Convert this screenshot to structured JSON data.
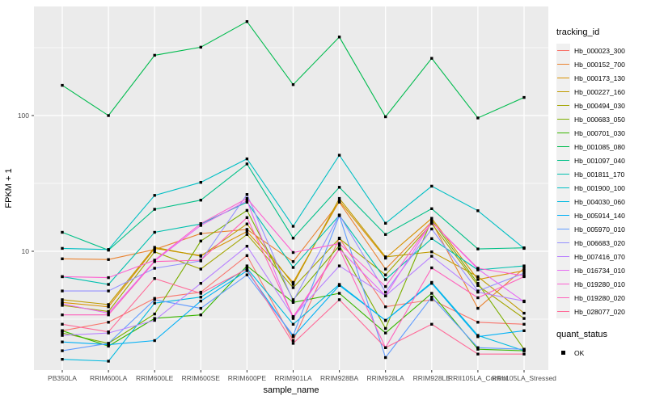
{
  "figure": {
    "panel_bg": "#EBEBEB",
    "grid_color": "#FFFFFF",
    "tick_text_color": "#4D4D4D",
    "axis_title_color": "#000000",
    "point_color": "#000000",
    "legend_key_bg": "#F0F0F0"
  },
  "legend": {
    "tracking_title": "tracking_id",
    "quant_title": "quant_status",
    "quant_items": [
      {
        "label": "OK"
      }
    ]
  },
  "chart_data": {
    "type": "line",
    "title": "",
    "xlabel": "sample_name",
    "ylabel": "FPKM + 1",
    "y_scale": "log10",
    "y_tick_labels": [
      "100",
      "10"
    ],
    "y_tick_values": [
      100,
      10
    ],
    "y_minor_values": [
      316.2,
      31.62,
      3.162
    ],
    "ylim_log10": [
      0.125,
      2.803
    ],
    "grid": true,
    "legend_position": "right",
    "point_marker": "filled-black-square",
    "categories": [
      "PB350LA",
      "RRIM600LA",
      "RRIM600LE",
      "RRIM600SE",
      "RRIM600PE",
      "RRIM901LA",
      "RRIM928BA",
      "RRIM928LA",
      "RRIM928LE",
      "RRII105LA_Control",
      "RRII105LA_Stressed"
    ],
    "series": [
      {
        "name": "Hb_000023_300",
        "color": "#F8766D",
        "values": [
          2.6,
          3.0,
          4.5,
          5.0,
          9.3,
          2.2,
          12.5,
          3.9,
          4.4,
          3.0,
          2.9
        ]
      },
      {
        "name": "Hb_000152_700",
        "color": "#EA8331",
        "values": [
          8.8,
          8.7,
          10.3,
          13.5,
          14.5,
          8.4,
          23.0,
          7.4,
          16.5,
          3.8,
          7.5
        ]
      },
      {
        "name": "Hb_000173_130",
        "color": "#D89000",
        "values": [
          4.2,
          3.9,
          10.5,
          9.3,
          14.0,
          5.9,
          23.5,
          8.9,
          17.5,
          6.2,
          7.2
        ]
      },
      {
        "name": "Hb_000227_160",
        "color": "#C09B00",
        "values": [
          4.4,
          4.05,
          10.7,
          9.2,
          15.9,
          5.7,
          24.5,
          9.1,
          9.9,
          6.5,
          3.5
        ]
      },
      {
        "name": "Hb_000494_030",
        "color": "#A3A500",
        "values": [
          4.0,
          3.6,
          9.9,
          7.4,
          13.3,
          5.4,
          12.4,
          6.7,
          16.0,
          5.6,
          3.2
        ]
      },
      {
        "name": "Hb_000683_050",
        "color": "#7CAE00",
        "values": [
          2.5,
          2.1,
          3.45,
          11.9,
          20.0,
          4.4,
          11.0,
          2.7,
          17.0,
          5.8,
          1.9
        ]
      },
      {
        "name": "Hb_000701_030",
        "color": "#39B600",
        "values": [
          2.6,
          2.0,
          3.2,
          3.4,
          7.8,
          4.2,
          4.9,
          2.5,
          4.9,
          1.9,
          1.85
        ]
      },
      {
        "name": "Hb_001085_080",
        "color": "#00BB4E",
        "values": [
          167,
          100,
          278,
          319,
          492,
          169,
          379,
          98,
          264,
          96,
          136
        ]
      },
      {
        "name": "Hb_001097_040",
        "color": "#00C087",
        "values": [
          13.8,
          10.2,
          20.4,
          23.8,
          44,
          12.5,
          29.6,
          13.3,
          20.6,
          10.4,
          10.6
        ]
      },
      {
        "name": "Hb_001811_170",
        "color": "#00C0AF",
        "values": [
          6.5,
          5.7,
          13.8,
          15.9,
          23.0,
          7.6,
          18.4,
          6.2,
          12.4,
          7.3,
          7.8
        ]
      },
      {
        "name": "Hb_001900_100",
        "color": "#00BFC4",
        "values": [
          10.5,
          10.3,
          25.8,
          32.2,
          48,
          15.3,
          51,
          16.1,
          30.2,
          19.9,
          10.5
        ]
      },
      {
        "name": "Hb_004030_060",
        "color": "#00BAE0",
        "values": [
          1.6,
          1.55,
          4.15,
          4.6,
          7.5,
          2.9,
          5.7,
          3.1,
          5.9,
          2.4,
          1.85
        ]
      },
      {
        "name": "Hb_005914_140",
        "color": "#00B0F6",
        "values": [
          2.15,
          2.05,
          2.2,
          4.3,
          7.2,
          2.35,
          5.6,
          3.1,
          5.8,
          2.35,
          2.6
        ]
      },
      {
        "name": "Hb_005970_010",
        "color": "#619CFF",
        "values": [
          1.85,
          2.1,
          4.4,
          3.8,
          6.7,
          2.4,
          18.3,
          1.65,
          4.6,
          1.95,
          1.9
        ]
      },
      {
        "name": "Hb_006683_020",
        "color": "#9590FF",
        "values": [
          5.1,
          5.1,
          7.5,
          8.5,
          26.2,
          4.3,
          18.5,
          5.0,
          14.6,
          5.1,
          6.9
        ]
      },
      {
        "name": "Hb_007416_070",
        "color": "#B983FF",
        "values": [
          2.4,
          2.5,
          3.1,
          5.8,
          10.9,
          3.3,
          7.8,
          4.7,
          9.2,
          5.0,
          4.3
        ]
      },
      {
        "name": "Hb_016734_010",
        "color": "#E76BF3",
        "values": [
          4.1,
          3.5,
          8.5,
          15.5,
          23.6,
          3.2,
          10.4,
          4.7,
          16.4,
          7.4,
          4.25
        ]
      },
      {
        "name": "Hb_019280_010",
        "color": "#FD61D1",
        "values": [
          6.5,
          6.4,
          8.6,
          16.0,
          24.5,
          9.8,
          11.4,
          5.5,
          16.4,
          7.5,
          6.6
        ]
      },
      {
        "name": "Hb_019280_020",
        "color": "#FF62BC",
        "values": [
          3.4,
          3.4,
          8.4,
          8.6,
          17.7,
          3.3,
          10.4,
          1.95,
          7.55,
          4.55,
          6.5
        ]
      },
      {
        "name": "Hb_028077_020",
        "color": "#FF6A98",
        "values": [
          2.9,
          2.55,
          6.3,
          4.9,
          7.4,
          2.1,
          4.4,
          1.95,
          2.9,
          1.75,
          1.75
        ]
      }
    ]
  }
}
